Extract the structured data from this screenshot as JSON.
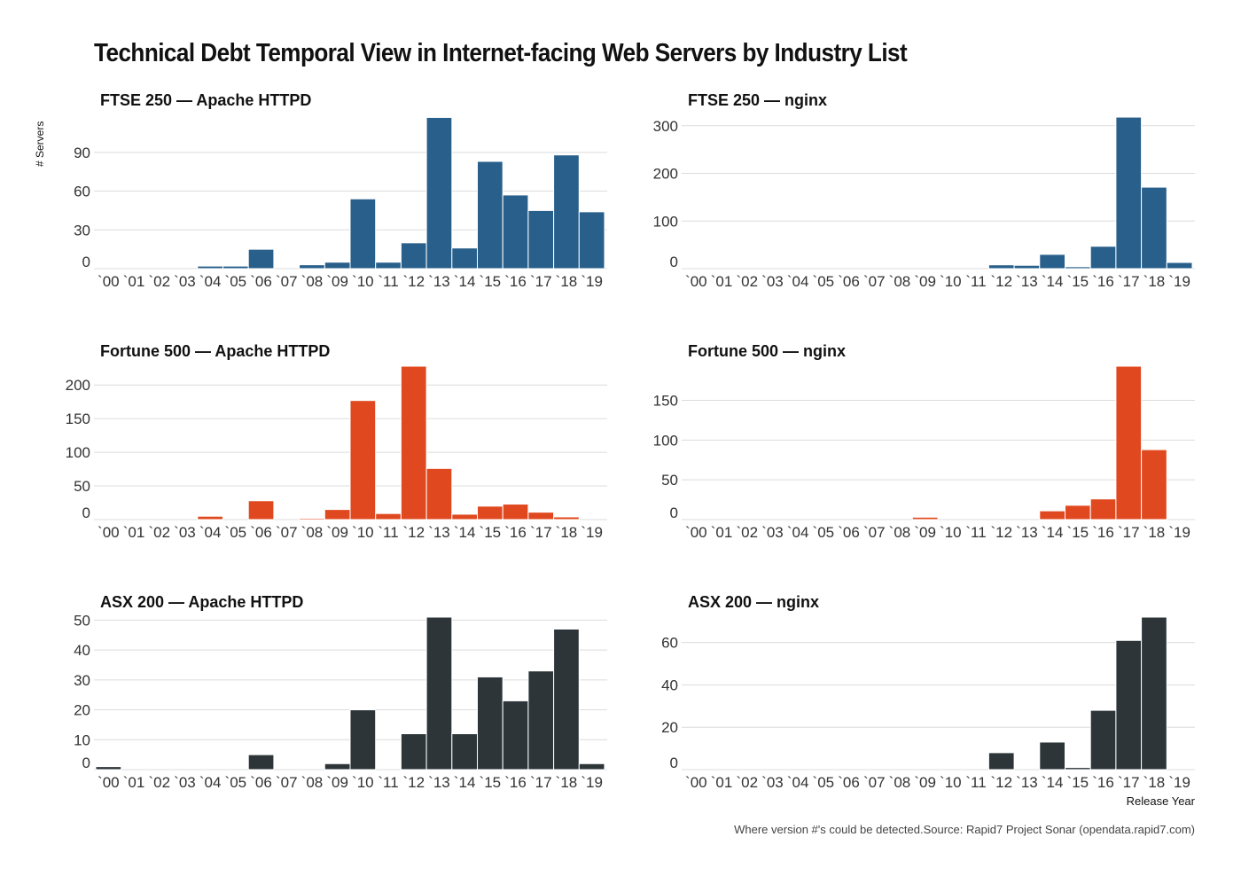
{
  "title": "Technical Debt Temporal View in Internet-facing Web Servers by Industry List",
  "ylabel": "# Servers",
  "xlabel": "Release Year",
  "caption": "Where version #'s could be detected.Source: Rapid7 Project Sonar (opendata.rapid7.com)",
  "colors": {
    "FTSE 250": "#295f8b",
    "Fortune 500": "#e0491f",
    "ASX 200": "#2d3538"
  },
  "chart_data": [
    {
      "type": "bar",
      "title": "FTSE 250 — Apache HTTPD",
      "list": "FTSE 250",
      "server": "Apache HTTPD",
      "categories": [
        "`00",
        "`01",
        "`02",
        "`03",
        "`04",
        "`05",
        "`06",
        "`07",
        "`08",
        "`09",
        "`10",
        "`11",
        "`12",
        "`13",
        "`14",
        "`15",
        "`16",
        "`17",
        "`18",
        "`19"
      ],
      "values": [
        0,
        0,
        0,
        0,
        2,
        2,
        15,
        0,
        3,
        5,
        54,
        5,
        20,
        117,
        16,
        83,
        57,
        45,
        88,
        44
      ],
      "yticks": [
        0,
        30,
        60,
        90
      ],
      "ylim": [
        0,
        118
      ],
      "ylabel": "# Servers",
      "xlabel": "",
      "grid": true
    },
    {
      "type": "bar",
      "title": "FTSE 250 — nginx",
      "list": "FTSE 250",
      "server": "nginx",
      "categories": [
        "`00",
        "`01",
        "`02",
        "`03",
        "`04",
        "`05",
        "`06",
        "`07",
        "`08",
        "`09",
        "`10",
        "`11",
        "`12",
        "`13",
        "`14",
        "`15",
        "`16",
        "`17",
        "`18",
        "`19"
      ],
      "values": [
        0,
        0,
        0,
        0,
        0,
        0,
        0,
        0,
        0,
        0,
        0,
        0,
        8,
        7,
        30,
        4,
        47,
        318,
        171,
        13
      ],
      "yticks": [
        0,
        100,
        200,
        300
      ],
      "ylim": [
        0,
        320
      ],
      "ylabel": "",
      "xlabel": "",
      "grid": true
    },
    {
      "type": "bar",
      "title": "Fortune 500 — Apache HTTPD",
      "list": "Fortune 500",
      "server": "Apache HTTPD",
      "categories": [
        "`00",
        "`01",
        "`02",
        "`03",
        "`04",
        "`05",
        "`06",
        "`07",
        "`08",
        "`09",
        "`10",
        "`11",
        "`12",
        "`13",
        "`14",
        "`15",
        "`16",
        "`17",
        "`18",
        "`19"
      ],
      "values": [
        0,
        0,
        0,
        0,
        5,
        0,
        28,
        0,
        2,
        15,
        177,
        9,
        228,
        76,
        8,
        20,
        23,
        11,
        4,
        0
      ],
      "yticks": [
        0,
        50,
        100,
        150,
        200
      ],
      "ylim": [
        0,
        228
      ],
      "ylabel": "",
      "xlabel": "",
      "grid": true
    },
    {
      "type": "bar",
      "title": "Fortune 500 — nginx",
      "list": "Fortune 500",
      "server": "nginx",
      "categories": [
        "`00",
        "`01",
        "`02",
        "`03",
        "`04",
        "`05",
        "`06",
        "`07",
        "`08",
        "`09",
        "`10",
        "`11",
        "`12",
        "`13",
        "`14",
        "`15",
        "`16",
        "`17",
        "`18",
        "`19"
      ],
      "values": [
        0,
        0,
        0,
        0,
        0,
        0,
        0,
        0,
        0,
        3,
        0,
        0,
        0,
        0,
        11,
        18,
        26,
        193,
        88,
        0
      ],
      "yticks": [
        0,
        50,
        100,
        150
      ],
      "ylim": [
        0,
        193
      ],
      "ylabel": "",
      "xlabel": "",
      "grid": true
    },
    {
      "type": "bar",
      "title": "ASX 200 — Apache HTTPD",
      "list": "ASX 200",
      "server": "Apache HTTPD",
      "categories": [
        "`00",
        "`01",
        "`02",
        "`03",
        "`04",
        "`05",
        "`06",
        "`07",
        "`08",
        "`09",
        "`10",
        "`11",
        "`12",
        "`13",
        "`14",
        "`15",
        "`16",
        "`17",
        "`18",
        "`19"
      ],
      "values": [
        1,
        0,
        0,
        0,
        0,
        0,
        5,
        0,
        0,
        2,
        20,
        0,
        12,
        51,
        12,
        31,
        23,
        33,
        47,
        2
      ],
      "yticks": [
        0,
        10,
        20,
        30,
        40,
        50
      ],
      "ylim": [
        0,
        51
      ],
      "ylabel": "",
      "xlabel": "",
      "grid": true
    },
    {
      "type": "bar",
      "title": "ASX 200 — nginx",
      "list": "ASX 200",
      "server": "nginx",
      "categories": [
        "`00",
        "`01",
        "`02",
        "`03",
        "`04",
        "`05",
        "`06",
        "`07",
        "`08",
        "`09",
        "`10",
        "`11",
        "`12",
        "`13",
        "`14",
        "`15",
        "`16",
        "`17",
        "`18",
        "`19"
      ],
      "values": [
        0,
        0,
        0,
        0,
        0,
        0,
        0,
        0,
        0,
        0,
        0,
        0,
        8,
        0,
        13,
        1,
        28,
        61,
        72,
        0
      ],
      "yticks": [
        0,
        20,
        40,
        60
      ],
      "ylim": [
        0,
        72
      ],
      "ylabel": "",
      "xlabel": "Release Year",
      "grid": true
    }
  ]
}
